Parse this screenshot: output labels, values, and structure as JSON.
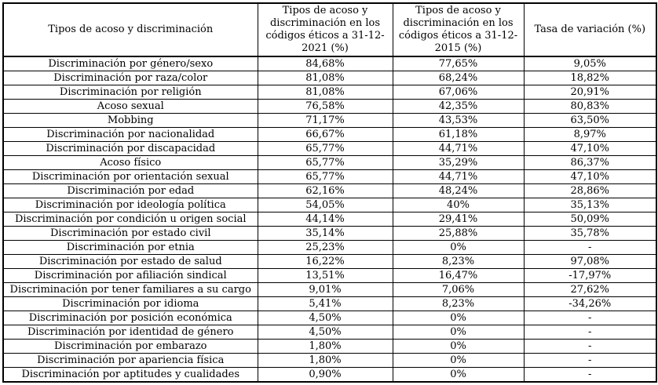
{
  "chart_data": {
    "type": "table",
    "columns": [
      "Tipos de acoso y discriminación",
      "Tipos de acoso y discriminación en los códigos éticos a 31-12-2021 (%)",
      "Tipos de acoso y discriminación en los códigos éticos a 31-12-2015 (%)",
      "Tasa de variación (%)"
    ],
    "rows": [
      [
        "Discriminación por género/sexo",
        "84,68%",
        "77,65%",
        "9,05%"
      ],
      [
        "Discriminación por raza/color",
        "81,08%",
        "68,24%",
        "18,82%"
      ],
      [
        "Discriminación por religión",
        "81,08%",
        "67,06%",
        "20,91%"
      ],
      [
        "Acoso sexual",
        "76,58%",
        "42,35%",
        "80,83%"
      ],
      [
        "Mobbing",
        "71,17%",
        "43,53%",
        "63,50%"
      ],
      [
        "Discriminación por nacionalidad",
        "66,67%",
        "61,18%",
        "8,97%"
      ],
      [
        "Discriminación por discapacidad",
        "65,77%",
        "44,71%",
        "47,10%"
      ],
      [
        "Acoso físico",
        "65,77%",
        "35,29%",
        "86,37%"
      ],
      [
        "Discriminación por orientación sexual",
        "65,77%",
        "44,71%",
        "47,10%"
      ],
      [
        "Discriminación por edad",
        "62,16%",
        "48,24%",
        "28,86%"
      ],
      [
        "Discriminación por ideología política",
        "54,05%",
        "40%",
        "35,13%"
      ],
      [
        "Discriminación por condición u origen social",
        "44,14%",
        "29,41%",
        "50,09%"
      ],
      [
        "Discriminación por estado civil",
        "35,14%",
        "25,88%",
        "35,78%"
      ],
      [
        "Discriminación por etnia",
        "25,23%",
        "0%",
        "-"
      ],
      [
        "Discriminación por estado de salud",
        "16,22%",
        "8,23%",
        "97,08%"
      ],
      [
        "Discriminación por afiliación sindical",
        "13,51%",
        "16,47%",
        "-17,97%"
      ],
      [
        "Discriminación por tener familiares a su cargo",
        "9,01%",
        "7,06%",
        "27,62%"
      ],
      [
        "Discriminación por idioma",
        "5,41%",
        "8,23%",
        "-34,26%"
      ],
      [
        "Discriminación por posición económica",
        "4,50%",
        "0%",
        "-"
      ],
      [
        "Discriminación por identidad de género",
        "4,50%",
        "0%",
        "-"
      ],
      [
        "Discriminación por embarazo",
        "1,80%",
        "0%",
        "-"
      ],
      [
        "Discriminación por apariencia física",
        "1,80%",
        "0%",
        "-"
      ],
      [
        "Discriminación por aptitudes y cualidades",
        "0,90%",
        "0%",
        "-"
      ]
    ],
    "colors": {
      "border": "#000000",
      "text": "#000000",
      "background": "#ffffff"
    },
    "layout": {
      "grid": "full-borders",
      "header_rows": 1,
      "value_alignment": "center"
    }
  }
}
